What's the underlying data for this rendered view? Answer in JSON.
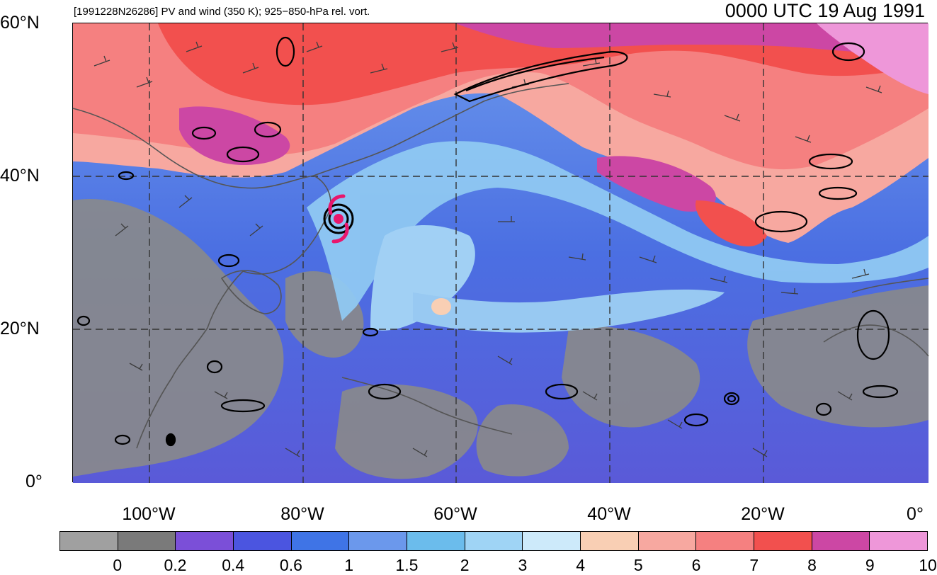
{
  "title": {
    "left": "[1991228N26286] PV and wind (350 K); 925−850-hPa rel. vort.",
    "right": "0000 UTC 19 Aug 1991"
  },
  "map": {
    "lat_labels": [
      "60°N",
      "40°N",
      "20°N",
      "0°"
    ],
    "lon_labels": [
      "100°W",
      "80°W",
      "60°W",
      "40°W",
      "20°W",
      "0°"
    ],
    "storm_symbol": "hurricane-symbol-icon",
    "storm_color": "#e8166c",
    "contour_color": "#000000",
    "barb_color": "#3c3c3c"
  },
  "colorbar": {
    "labels": [
      "0",
      "0.2",
      "0.4",
      "0.6",
      "1",
      "1.5",
      "2",
      "3",
      "4",
      "5",
      "6",
      "7",
      "8",
      "9",
      "10"
    ],
    "colors": [
      "#a0a0a0",
      "#7a7a7a",
      "#7b4fd8",
      "#4b55e0",
      "#3f74e6",
      "#6b98ec",
      "#6bbcec",
      "#9fd4f5",
      "#cdeafa",
      "#f9cfb4",
      "#f7a8a0",
      "#f58080",
      "#f2504e",
      "#cc47a4",
      "#ee97d9"
    ]
  }
}
